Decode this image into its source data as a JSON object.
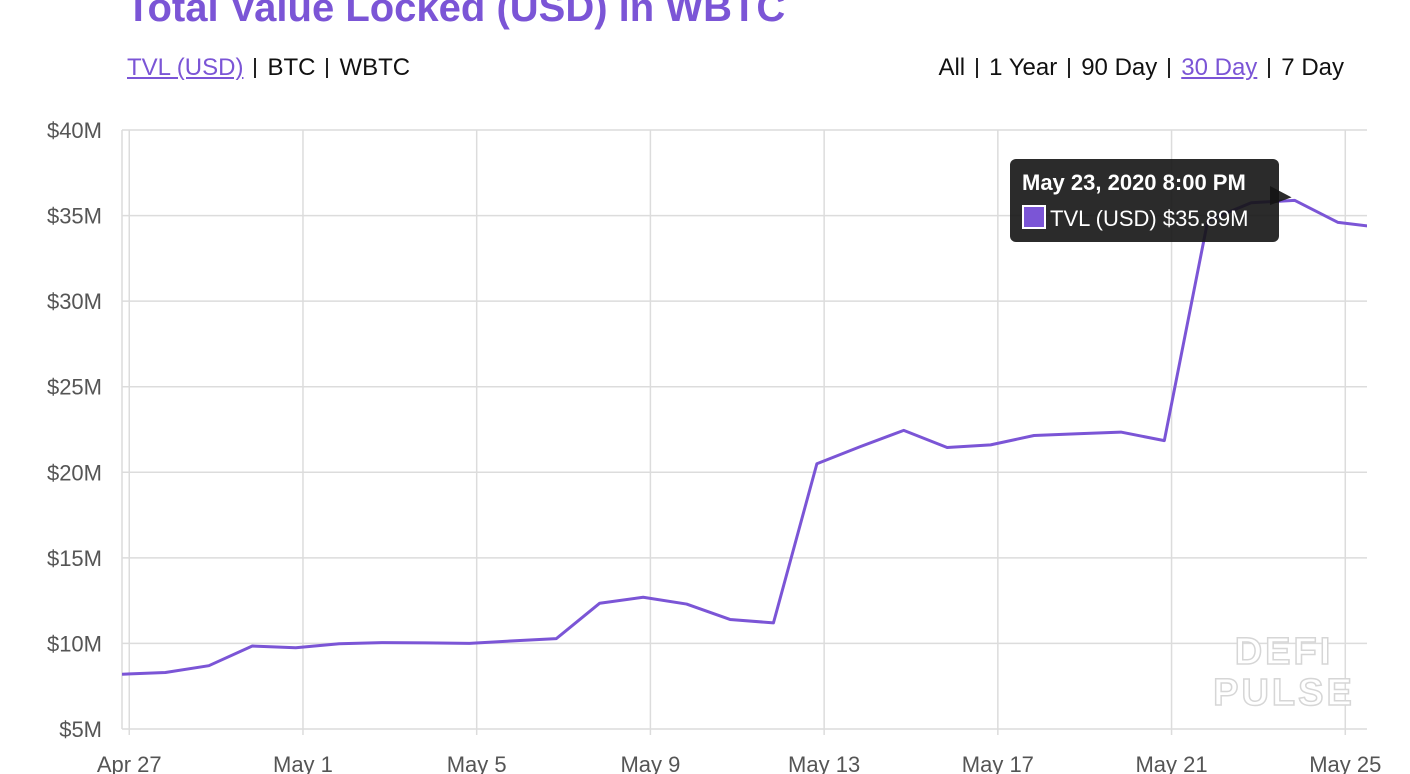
{
  "chart_data": {
    "type": "line",
    "title": "Total Value Locked (USD) in WBTC",
    "tabs": [
      "TVL (USD)",
      "BTC",
      "WBTC"
    ],
    "active_tab": 0,
    "ranges": [
      "All",
      "1 Year",
      "90 Day",
      "30 Day",
      "7 Day"
    ],
    "active_range": 3,
    "watermark": [
      "DEFI",
      "PULSE"
    ],
    "x": [
      -0.167,
      0.833,
      1.833,
      2.833,
      3.833,
      4.833,
      5.833,
      6.833,
      7.833,
      8.833,
      9.833,
      10.833,
      11.833,
      12.833,
      13.833,
      14.833,
      15.833,
      16.833,
      17.833,
      18.833,
      19.833,
      20.833,
      21.833,
      22.833,
      23.833,
      24.833,
      25.833,
      26.833,
      27.833,
      28.833
    ],
    "series": [
      {
        "name": "TVL (USD)",
        "color": "#7b55d6",
        "values": [
          8.2,
          8.3,
          8.7,
          9.85,
          9.75,
          9.98,
          10.05,
          10.03,
          10.0,
          10.15,
          10.28,
          12.35,
          12.7,
          12.3,
          11.4,
          11.2,
          20.5,
          21.5,
          22.45,
          21.45,
          21.6,
          22.15,
          22.25,
          22.35,
          21.85,
          34.7,
          35.75,
          35.89,
          34.6,
          34.3
        ]
      }
    ],
    "xlim": [
      -0.167,
      28.5
    ],
    "xticks": [
      {
        "value": 0,
        "label": "Apr 27"
      },
      {
        "value": 4,
        "label": "May 1"
      },
      {
        "value": 8,
        "label": "May 5"
      },
      {
        "value": 12,
        "label": "May 9"
      },
      {
        "value": 16,
        "label": "May 13"
      },
      {
        "value": 20,
        "label": "May 17"
      },
      {
        "value": 24,
        "label": "May 21"
      },
      {
        "value": 28,
        "label": "May 25"
      }
    ],
    "ylim": [
      5,
      40
    ],
    "yticks": [
      {
        "value": 5,
        "label": "$5M"
      },
      {
        "value": 10,
        "label": "$10M"
      },
      {
        "value": 15,
        "label": "$15M"
      },
      {
        "value": 20,
        "label": "$20M"
      },
      {
        "value": 25,
        "label": "$25M"
      },
      {
        "value": 30,
        "label": "$30M"
      },
      {
        "value": 35,
        "label": "$35M"
      },
      {
        "value": 40,
        "label": "$40M"
      }
    ],
    "grid": true,
    "tooltip": {
      "index": 27,
      "title": "May 23, 2020 8:00 PM",
      "value_label": "$35.89M"
    }
  }
}
